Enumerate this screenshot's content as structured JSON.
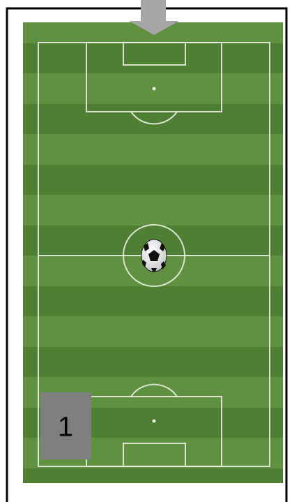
{
  "badge": {
    "label": "1"
  }
}
